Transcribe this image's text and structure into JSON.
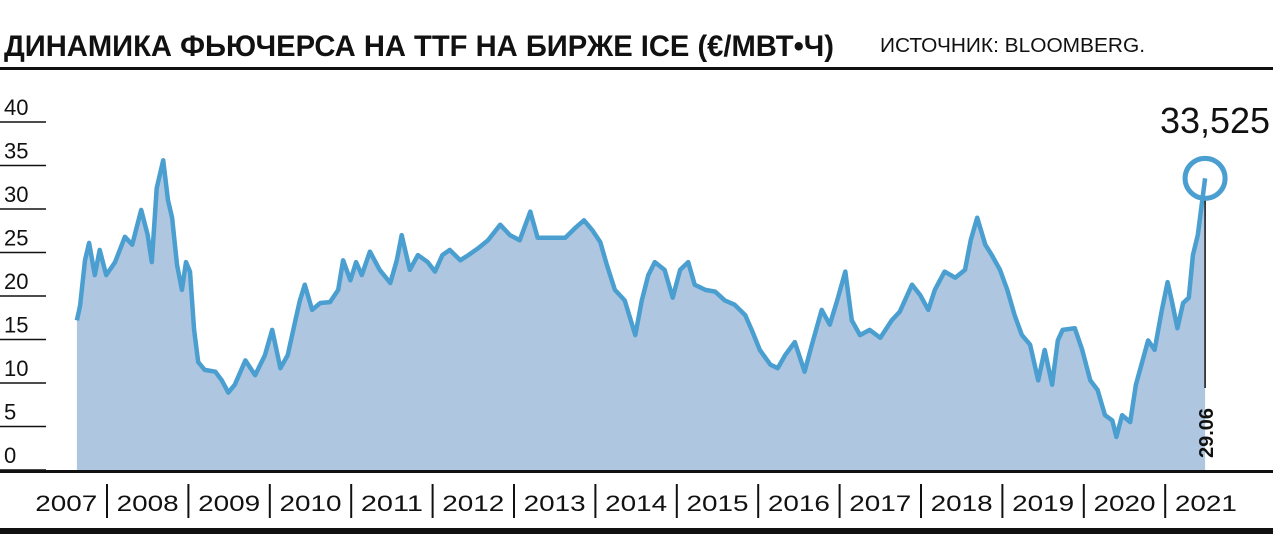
{
  "chart_data": {
    "type": "area",
    "title": "ДИНАМИКА ФЬЮЧЕРСА НА TTF НА БИРЖЕ ICE (€/МВТ•Ч)",
    "source": "ИСТОЧНИК: BLOOMBERG.",
    "annotations": [
      {
        "text": "33,525"
      },
      {
        "text": "29.06"
      }
    ],
    "color": "#4a9fd0",
    "fill_color": "#aec6e0",
    "xlim": [
      2007,
      2022
    ],
    "xticks": [
      2007,
      2008,
      2009,
      2010,
      2011,
      2012,
      2013,
      2014,
      2015,
      2016,
      2017,
      2018,
      2019,
      2020,
      2021
    ],
    "ylim": [
      0,
      40
    ],
    "yticks": [
      0,
      5,
      10,
      15,
      20,
      25,
      30,
      35,
      40
    ],
    "x": [
      2007.63,
      2007.67,
      2007.73,
      2007.78,
      2007.85,
      2007.91,
      2007.99,
      2008.1,
      2008.22,
      2008.31,
      2008.42,
      2008.5,
      2008.55,
      2008.61,
      2008.69,
      2008.75,
      2008.8,
      2008.86,
      2008.92,
      2008.97,
      2009.02,
      2009.07,
      2009.12,
      2009.2,
      2009.33,
      2009.41,
      2009.49,
      2009.57,
      2009.7,
      2009.82,
      2009.94,
      2010.03,
      2010.13,
      2010.22,
      2010.31,
      2010.37,
      2010.43,
      2010.52,
      2010.62,
      2010.74,
      2010.84,
      2010.9,
      2010.99,
      2011.06,
      2011.13,
      2011.23,
      2011.35,
      2011.48,
      2011.56,
      2011.62,
      2011.72,
      2011.82,
      2011.94,
      2012.03,
      2012.12,
      2012.21,
      2012.34,
      2012.44,
      2012.56,
      2012.68,
      2012.83,
      2012.95,
      2013.07,
      2013.2,
      2013.29,
      2013.44,
      2013.63,
      2013.75,
      2013.86,
      2013.96,
      2014.06,
      2014.14,
      2014.24,
      2014.36,
      2014.49,
      2014.57,
      2014.65,
      2014.73,
      2014.85,
      2014.95,
      2015.04,
      2015.14,
      2015.22,
      2015.35,
      2015.47,
      2015.59,
      2015.71,
      2015.84,
      2015.92,
      2016.02,
      2016.15,
      2016.24,
      2016.33,
      2016.45,
      2016.57,
      2016.66,
      2016.78,
      2016.88,
      2016.97,
      2017.07,
      2017.15,
      2017.25,
      2017.37,
      2017.5,
      2017.64,
      2017.74,
      2017.89,
      2017.99,
      2018.09,
      2018.17,
      2018.29,
      2018.42,
      2018.54,
      2018.61,
      2018.69,
      2018.79,
      2018.87,
      2018.97,
      2019.06,
      2019.15,
      2019.24,
      2019.34,
      2019.44,
      2019.52,
      2019.61,
      2019.68,
      2019.74,
      2019.89,
      2019.98,
      2020.08,
      2020.17,
      2020.26,
      2020.35,
      2020.4,
      2020.47,
      2020.57,
      2020.64,
      2020.69,
      2020.79,
      2020.87,
      2020.96,
      2021.03,
      2021.08,
      2021.15,
      2021.22,
      2021.29,
      2021.34,
      2021.4,
      2021.49
    ],
    "values": [
      17.2,
      18.9,
      24.1,
      26.1,
      22.4,
      25.3,
      22.4,
      23.9,
      26.8,
      25.9,
      29.9,
      27.0,
      23.9,
      32.4,
      35.6,
      31.0,
      29.0,
      23.6,
      20.7,
      23.9,
      22.8,
      16.1,
      12.4,
      11.5,
      11.3,
      10.3,
      8.9,
      9.8,
      12.6,
      10.9,
      13.2,
      16.1,
      11.7,
      13.2,
      17.0,
      19.5,
      21.3,
      18.4,
      19.2,
      19.3,
      20.7,
      24.1,
      21.8,
      23.9,
      22.4,
      25.1,
      23.0,
      21.5,
      24.1,
      27.0,
      23.0,
      24.7,
      23.9,
      22.8,
      24.7,
      25.3,
      24.1,
      24.7,
      25.5,
      26.4,
      28.2,
      27.0,
      26.4,
      29.7,
      26.7,
      26.7,
      26.7,
      27.8,
      28.7,
      27.6,
      26.2,
      23.6,
      20.7,
      19.5,
      15.5,
      19.5,
      22.4,
      23.9,
      23.0,
      19.8,
      23.0,
      23.9,
      21.3,
      20.7,
      20.5,
      19.5,
      19.0,
      17.8,
      16.1,
      13.8,
      12.1,
      11.7,
      13.2,
      14.7,
      11.3,
      14.4,
      18.4,
      16.7,
      19.5,
      22.8,
      17.2,
      15.5,
      16.1,
      15.2,
      17.2,
      18.2,
      21.3,
      20.1,
      18.4,
      20.7,
      22.8,
      22.1,
      23.0,
      26.4,
      29.0,
      25.9,
      24.7,
      23.0,
      20.7,
      17.8,
      15.5,
      14.4,
      10.3,
      13.8,
      9.8,
      14.9,
      16.1,
      16.3,
      13.8,
      10.3,
      9.2,
      6.3,
      5.7,
      3.8,
      6.3,
      5.5,
      9.8,
      11.5,
      14.9,
      13.8,
      18.4,
      21.6,
      19.5,
      16.3,
      19.2,
      19.8,
      24.7,
      27.0,
      33.525
    ]
  }
}
